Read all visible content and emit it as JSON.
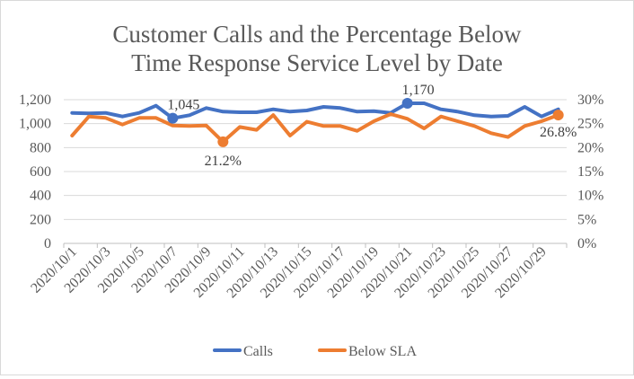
{
  "chart_data": {
    "type": "line",
    "title_lines": [
      "Customer Calls and the Percentage Below",
      "Time Response Service Level by Date"
    ],
    "x": [
      "2020/10/1",
      "2020/10/2",
      "2020/10/3",
      "2020/10/4",
      "2020/10/5",
      "2020/10/6",
      "2020/10/7",
      "2020/10/8",
      "2020/10/9",
      "2020/10/10",
      "2020/10/11",
      "2020/10/12",
      "2020/10/13",
      "2020/10/14",
      "2020/10/15",
      "2020/10/16",
      "2020/10/17",
      "2020/10/18",
      "2020/10/19",
      "2020/10/20",
      "2020/10/21",
      "2020/10/22",
      "2020/10/23",
      "2020/10/24",
      "2020/10/25",
      "2020/10/26",
      "2020/10/27",
      "2020/10/28",
      "2020/10/29",
      "2020/10/30"
    ],
    "x_tick_labels": [
      "2020/10/1",
      "2020/10/3",
      "2020/10/5",
      "2020/10/7",
      "2020/10/9",
      "2020/10/11",
      "2020/10/13",
      "2020/10/15",
      "2020/10/17",
      "2020/10/19",
      "2020/10/21",
      "2020/10/23",
      "2020/10/25",
      "2020/10/27",
      "2020/10/29"
    ],
    "y_left": {
      "min": 0,
      "max": 1200,
      "ticks": [
        "0",
        "200",
        "400",
        "600",
        "800",
        "1,000",
        "1,200"
      ]
    },
    "y_right": {
      "min": 0,
      "max": 0.3,
      "ticks": [
        "0%",
        "5%",
        "10%",
        "15%",
        "20%",
        "25%",
        "30%"
      ]
    },
    "series": [
      {
        "name": "Calls",
        "axis": "left",
        "color": "#4472c4",
        "values": [
          1090,
          1085,
          1090,
          1060,
          1090,
          1150,
          1045,
          1070,
          1130,
          1100,
          1095,
          1095,
          1120,
          1100,
          1110,
          1140,
          1130,
          1100,
          1105,
          1090,
          1170,
          1170,
          1120,
          1100,
          1070,
          1060,
          1065,
          1140,
          1060,
          1120
        ]
      },
      {
        "name": "Below SLA",
        "axis": "right",
        "color": "#ed7d31",
        "values": [
          0.225,
          0.265,
          0.262,
          0.248,
          0.262,
          0.262,
          0.246,
          0.245,
          0.246,
          0.212,
          0.243,
          0.237,
          0.268,
          0.225,
          0.254,
          0.245,
          0.245,
          0.235,
          0.255,
          0.27,
          0.26,
          0.24,
          0.265,
          0.255,
          0.245,
          0.23,
          0.222,
          0.245,
          0.255,
          0.268
        ]
      }
    ],
    "annotations": [
      {
        "series": "Calls",
        "index": 6,
        "label": "1,045"
      },
      {
        "series": "Calls",
        "index": 20,
        "label": "1,170"
      },
      {
        "series": "Below SLA",
        "index": 9,
        "label": "21.2%"
      },
      {
        "series": "Below SLA",
        "index": 29,
        "label": "26.8%"
      }
    ],
    "grid": true,
    "legend": "bottom"
  }
}
